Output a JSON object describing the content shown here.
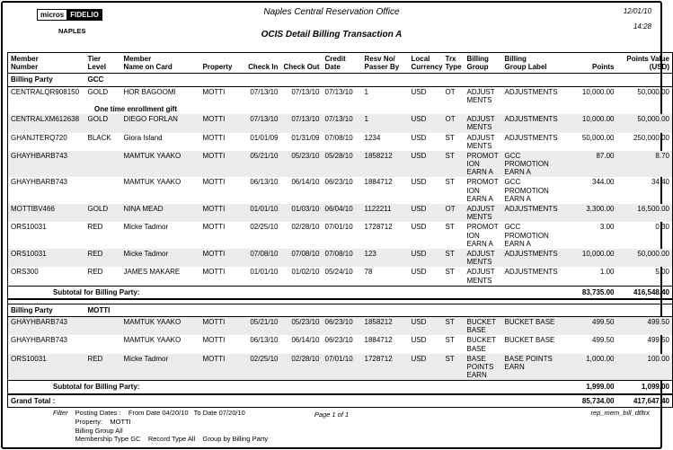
{
  "page": {
    "logo_micros": "micros",
    "logo_fidelio": "FIDELIO",
    "logo_property": "NAPLES",
    "title": "Naples Central Reservation Office",
    "subtitle": "OCIS Detail Billing Transaction A",
    "print_date": "12/01/10",
    "print_time": "14:28"
  },
  "table": {
    "columns": [
      "Member\nNumber",
      "Tier\nLevel",
      "Member\nName on Card",
      "Property",
      "Check In",
      "Check Out",
      "Credit\nDate",
      "Resv No/\nPasser By",
      "Local\nCurrency",
      "Trx\nType",
      "Billing\nGroup",
      "Billing\nGroup Label",
      "Points",
      "Points Value\n(USD)"
    ],
    "sections": [
      {
        "billing_party_label": "Billing Party",
        "billing_party": "GCC",
        "rows": [
          {
            "member_number": "CENTRALQR908150",
            "tier": "GOLD",
            "name": "HOR BAGOOMI",
            "property": "MOTTI",
            "check_in": "07/13/10",
            "check_out": "07/13/10",
            "credit_date": "07/13/10",
            "resv_no": "1",
            "currency": "USD",
            "trx_type": "OT",
            "billing_group": "ADJUST\nMENTS",
            "billing_group_label": "ADJUSTMENTS",
            "points": "10,000.00",
            "points_value": "50,000.00",
            "note": "One time enrollment gift"
          },
          {
            "member_number": "CENTRALXM612638",
            "tier": "GOLD",
            "name": "DIEGO FORLAN",
            "property": "MOTTI",
            "check_in": "07/13/10",
            "check_out": "07/13/10",
            "credit_date": "07/13/10",
            "resv_no": "1",
            "currency": "USD",
            "trx_type": "OT",
            "billing_group": "ADJUST\nMENTS",
            "billing_group_label": "ADJUSTMENTS",
            "points": "10,000.00",
            "points_value": "50,000.00"
          },
          {
            "member_number": "GHANJTERQ720",
            "tier": "BLACK",
            "name": "Giora Island",
            "property": "MOTTI",
            "check_in": "01/01/09",
            "check_out": "01/31/09",
            "credit_date": "07/08/10",
            "resv_no": "1234",
            "currency": "USD",
            "trx_type": "ST",
            "billing_group": "ADJUST\nMENTS",
            "billing_group_label": "ADJUSTMENTS",
            "points": "50,000.00",
            "points_value": "250,000.00"
          },
          {
            "member_number": "GHAYHBARB743",
            "tier": "",
            "name": "MAMTUK YAAKO",
            "property": "MOTTI",
            "check_in": "05/21/10",
            "check_out": "05/23/10",
            "credit_date": "05/28/10",
            "resv_no": "1858212",
            "currency": "USD",
            "trx_type": "ST",
            "billing_group": "PROMOT\nION\nEARN A",
            "billing_group_label": "GCC PROMOTION\nEARN A",
            "points": "87.00",
            "points_value": "8.70"
          },
          {
            "member_number": "GHAYHBARB743",
            "tier": "",
            "name": "MAMTUK YAAKO",
            "property": "MOTTI",
            "check_in": "06/13/10",
            "check_out": "06/14/10",
            "credit_date": "06/23/10",
            "resv_no": "1884712",
            "currency": "USD",
            "trx_type": "ST",
            "billing_group": "PROMOT\nION\nEARN A",
            "billing_group_label": "GCC PROMOTION\nEARN A",
            "points": "344.00",
            "points_value": "34.40"
          },
          {
            "member_number": "MOTTIBV466",
            "tier": "GOLD",
            "name": "NINA MEAD",
            "property": "MOTTI",
            "check_in": "01/01/10",
            "check_out": "01/03/10",
            "credit_date": "06/04/10",
            "resv_no": "1122211",
            "currency": "USD",
            "trx_type": "OT",
            "billing_group": "ADJUST\nMENTS",
            "billing_group_label": "ADJUSTMENTS",
            "points": "3,300.00",
            "points_value": "16,500.00"
          },
          {
            "member_number": "ORS10031",
            "tier": "RED",
            "name": "Micke Tadmor",
            "property": "MOTTI",
            "check_in": "02/25/10",
            "check_out": "02/28/10",
            "credit_date": "07/01/10",
            "resv_no": "1728712",
            "currency": "USD",
            "trx_type": "ST",
            "billing_group": "PROMOT\nION\nEARN A",
            "billing_group_label": "GCC PROMOTION\nEARN A",
            "points": "3.00",
            "points_value": "0.30"
          },
          {
            "member_number": "ORS10031",
            "tier": "RED",
            "name": "Micke Tadmor",
            "property": "MOTTI",
            "check_in": "07/08/10",
            "check_out": "07/08/10",
            "credit_date": "07/08/10",
            "resv_no": "123",
            "currency": "USD",
            "trx_type": "ST",
            "billing_group": "ADJUST\nMENTS",
            "billing_group_label": "ADJUSTMENTS",
            "points": "10,000.00",
            "points_value": "50,000.00"
          },
          {
            "member_number": "ORS300",
            "tier": "RED",
            "name": "JAMES MAKARE",
            "property": "MOTTI",
            "check_in": "01/01/10",
            "check_out": "01/02/10",
            "credit_date": "05/24/10",
            "resv_no": "78",
            "currency": "USD",
            "trx_type": "ST",
            "billing_group": "ADJUST\nMENTS",
            "billing_group_label": "ADJUSTMENTS",
            "points": "1.00",
            "points_value": "5.00"
          }
        ],
        "subtotal": {
          "label": "Subtotal for Billing Party:",
          "points": "83,735.00",
          "points_value": "416,548.40"
        }
      },
      {
        "billing_party_label": "Billing Party",
        "billing_party": "MOTTI",
        "rows": [
          {
            "member_number": "GHAYHBARB743",
            "tier": "",
            "name": "MAMTUK YAAKO",
            "property": "MOTTI",
            "check_in": "05/21/10",
            "check_out": "05/23/10",
            "credit_date": "06/23/10",
            "resv_no": "1858212",
            "currency": "USD",
            "trx_type": "ST",
            "billing_group": "BUCKET\nBASE",
            "billing_group_label": "BUCKET BASE",
            "points": "499.50",
            "points_value": "499.50"
          },
          {
            "member_number": "GHAYHBARB743",
            "tier": "",
            "name": "MAMTUK YAAKO",
            "property": "MOTTI",
            "check_in": "06/13/10",
            "check_out": "06/14/10",
            "credit_date": "06/23/10",
            "resv_no": "1884712",
            "currency": "USD",
            "trx_type": "ST",
            "billing_group": "BUCKET\nBASE",
            "billing_group_label": "BUCKET BASE",
            "points": "499.50",
            "points_value": "499.50"
          },
          {
            "member_number": "ORS10031",
            "tier": "RED",
            "name": "Micke Tadmor",
            "property": "MOTTI",
            "check_in": "02/25/10",
            "check_out": "02/28/10",
            "credit_date": "07/01/10",
            "resv_no": "1728712",
            "currency": "USD",
            "trx_type": "ST",
            "billing_group": "BASE\nPOINTS\nEARN",
            "billing_group_label": "BASE POINTS\nEARN",
            "points": "1,000.00",
            "points_value": "100.00"
          }
        ],
        "subtotal": {
          "label": "Subtotal for Billing Party:",
          "points": "1,999.00",
          "points_value": "1,099.00"
        }
      }
    ],
    "grand_total": {
      "label": "Grand Total :",
      "points": "85,734.00",
      "points_value": "417,647.40"
    }
  },
  "footer": {
    "filter_label": "Filter",
    "filter_lines": [
      "Posting Dates :    From Date 04/20/10   To Date 07/20/10",
      "Property:    MOTTI",
      "Billing Group All",
      "Membership Type GC    Record Type All    Group by Billing Party"
    ],
    "page_indicator": "Page 1 of 1",
    "report_id": "rep_mem_bill_dtltrx"
  }
}
